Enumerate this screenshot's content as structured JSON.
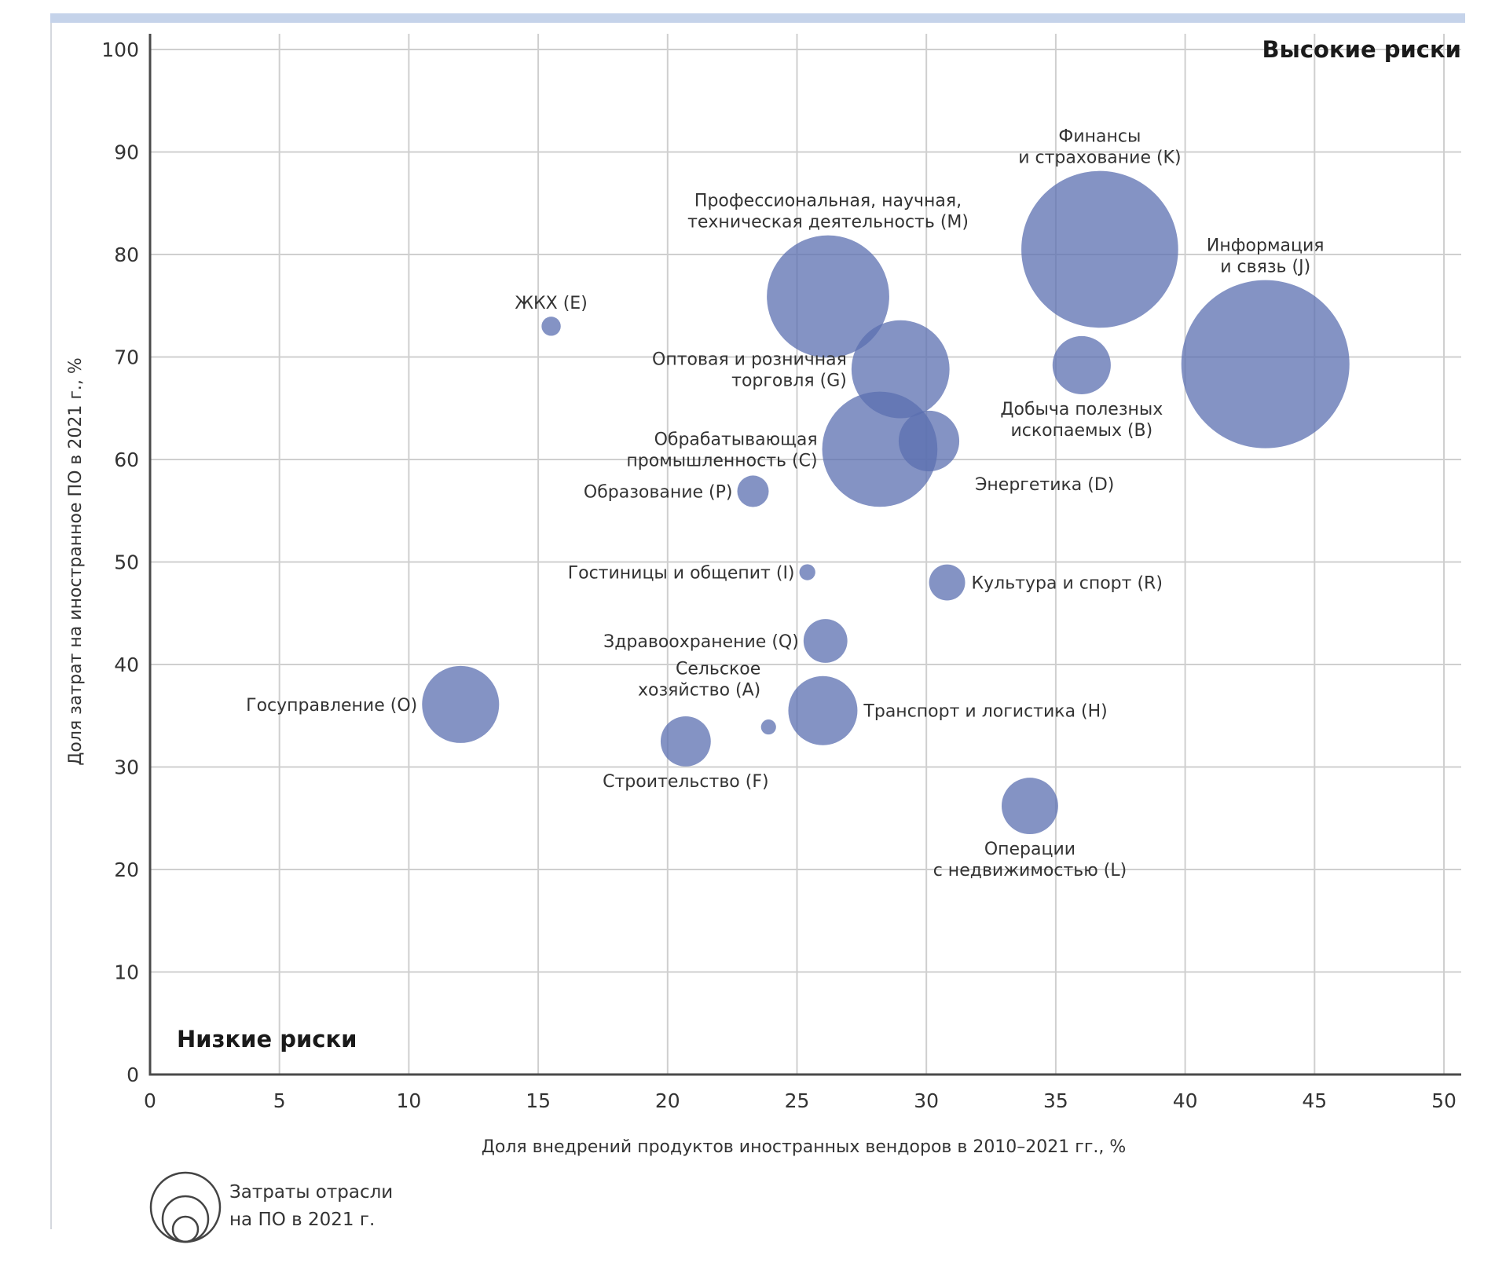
{
  "chart_data": {
    "type": "bubble",
    "title": "",
    "xlabel": "Доля внедрений продуктов иностранных вендоров в 2010–2021 гг., %",
    "ylabel": "Доля затрат на иностранное ПО в 2021 г., %",
    "xlim": [
      0,
      50
    ],
    "ylim": [
      0,
      100
    ],
    "xticks": [
      "0",
      "5",
      "10",
      "15",
      "20",
      "25",
      "30",
      "35",
      "40",
      "45",
      "50"
    ],
    "yticks": [
      "0",
      "10",
      "20",
      "30",
      "40",
      "50",
      "60",
      "70",
      "80",
      "90",
      "100"
    ],
    "grid": true,
    "bubble_color": "#5b6fb0",
    "size_note": "relative bubble area (Информация и связь = 100)",
    "quadrant_labels": {
      "high": "Высокие риски",
      "low": "Низкие риски"
    },
    "legend": {
      "line1": "Затраты отрасли",
      "line2": "на ПО в 2021 г.",
      "placement": "bottom-left"
    },
    "points": [
      {
        "code": "K",
        "label": [
          "Финансы",
          "и страхование (K)"
        ],
        "x": 36.7,
        "y": 80.5,
        "size": 87,
        "label_pos": "top"
      },
      {
        "code": "J",
        "label": [
          "Информация",
          "и связь (J)"
        ],
        "x": 43.1,
        "y": 69.3,
        "size": 100,
        "label_pos": "top"
      },
      {
        "code": "M",
        "label": [
          "Профессиональная, научная,",
          "техническая деятельность (M)"
        ],
        "x": 26.2,
        "y": 75.9,
        "size": 53,
        "label_pos": "top"
      },
      {
        "code": "G",
        "label": [
          "Оптовая и розничная",
          "торговля (G)"
        ],
        "x": 29.0,
        "y": 68.8,
        "size": 34,
        "label_pos": "left"
      },
      {
        "code": "C",
        "label": [
          "Обрабатывающая",
          "промышленность (C)"
        ],
        "x": 28.2,
        "y": 61.0,
        "size": 47,
        "label_pos": "left"
      },
      {
        "code": "D",
        "label": [
          "Энергетика (D)"
        ],
        "x": 30.1,
        "y": 61.8,
        "size": 13,
        "label_pos": "bottom-right"
      },
      {
        "code": "B",
        "label": [
          "Добыча полезных",
          "ископаемых (B)"
        ],
        "x": 36.0,
        "y": 69.2,
        "size": 12,
        "label_pos": "bottom"
      },
      {
        "code": "E",
        "label": [
          "ЖКХ (E)"
        ],
        "x": 15.5,
        "y": 73.0,
        "size": 1.3,
        "label_pos": "top"
      },
      {
        "code": "P",
        "label": [
          "Образование (P)"
        ],
        "x": 23.3,
        "y": 56.9,
        "size": 3.5,
        "label_pos": "left"
      },
      {
        "code": "I",
        "label": [
          "Гостиницы и общепит (I)"
        ],
        "x": 25.4,
        "y": 49.0,
        "size": 0.9,
        "label_pos": "left"
      },
      {
        "code": "R",
        "label": [
          "Культура и спорт (R)"
        ],
        "x": 30.8,
        "y": 48.0,
        "size": 4.6,
        "label_pos": "right"
      },
      {
        "code": "Q",
        "label": [
          "Здравоохранение (Q)"
        ],
        "x": 26.1,
        "y": 42.3,
        "size": 6.8,
        "label_pos": "left"
      },
      {
        "code": "O",
        "label": [
          "Госуправление (O)"
        ],
        "x": 12.0,
        "y": 36.1,
        "size": 21,
        "label_pos": "left"
      },
      {
        "code": "A",
        "label": [
          "Сельское",
          "хозяйство (A)"
        ],
        "x": 23.9,
        "y": 33.9,
        "size": 0.8,
        "label_pos": "top-left"
      },
      {
        "code": "H",
        "label": [
          "Транспорт и логистика (H)"
        ],
        "x": 26.0,
        "y": 35.5,
        "size": 16.9,
        "label_pos": "right"
      },
      {
        "code": "F",
        "label": [
          "Строительство (F)"
        ],
        "x": 20.7,
        "y": 32.5,
        "size": 8.9,
        "label_pos": "bottom"
      },
      {
        "code": "L",
        "label": [
          "Операции",
          "с недвижимостью (L)"
        ],
        "x": 34.0,
        "y": 26.2,
        "size": 11.3,
        "label_pos": "bottom"
      }
    ]
  }
}
